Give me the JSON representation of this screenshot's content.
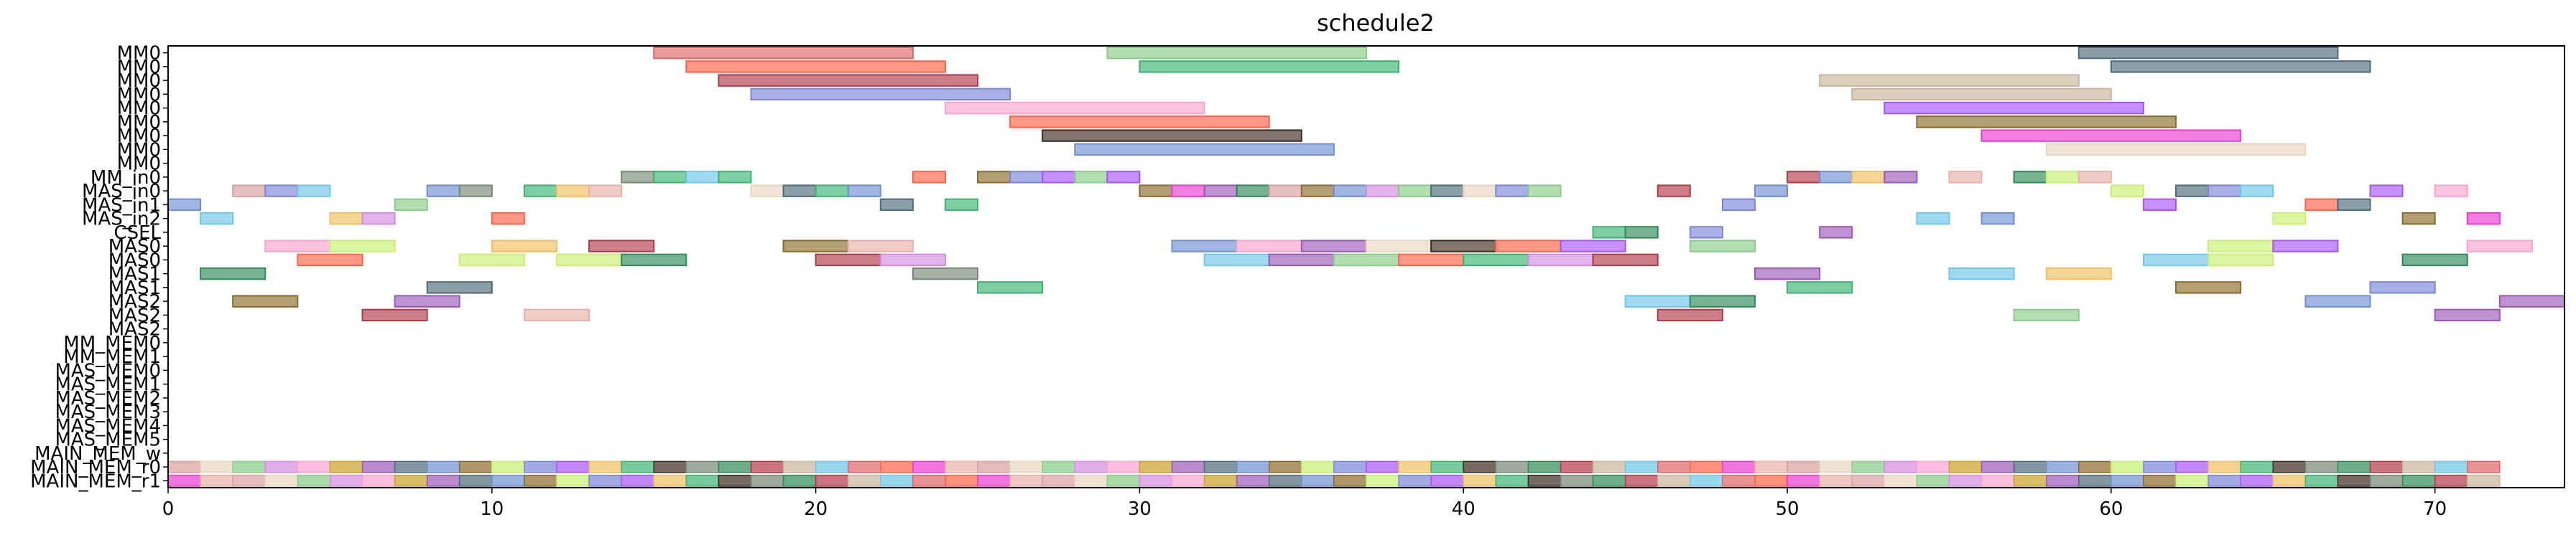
{
  "chart_data": {
    "type": "gantt",
    "title": "schedule2",
    "xlabel": "",
    "ylabel": "",
    "xlim": [
      0,
      74
    ],
    "xticks": [
      0,
      10,
      20,
      30,
      40,
      50,
      60,
      70
    ],
    "grid": false,
    "legend": "none",
    "rows": [
      "MM0",
      "MM0",
      "MM0",
      "MM0",
      "MM0",
      "MM0",
      "MM0",
      "MM0",
      "MM0",
      "MM_in0",
      "MAS_in0",
      "MAS_in1",
      "MAS_in2",
      "CSEL",
      "MAS0",
      "MAS0",
      "MAS1",
      "MAS1",
      "MAS2",
      "MAS2",
      "MAS2",
      "MM_MEM0",
      "MM_MEM1",
      "MAS_MEM0",
      "MAS_MEM1",
      "MAS_MEM2",
      "MAS_MEM3",
      "MAS_MEM4",
      "MAS_MEM5",
      "MAIN_MEM_w",
      "MAIN_MEM_r0",
      "MAIN_MEM_r1"
    ],
    "palette": [
      "#e06666",
      "#3cb371",
      "#4d6b7a",
      "#d9a0a0",
      "#b03a48",
      "#7b86d8",
      "#f9a3d0",
      "#ff6347",
      "#3d2b1f",
      "#6f8fd0",
      "#ead5c0",
      "#c8b59a",
      "#a855f7",
      "#c9a227",
      "#e93bd0",
      "#778877",
      "#8a6b2a",
      "#88cc88",
      "#6ec6e8",
      "#f0c060",
      "#9b59b6",
      "#e8b0a8",
      "#2e8b57",
      "#c8f070",
      "#d48ce0"
    ],
    "bars": [
      {
        "row": 0,
        "start": 15,
        "end": 23,
        "c": 0
      },
      {
        "row": 0,
        "start": 29,
        "end": 37,
        "c": 17
      },
      {
        "row": 0,
        "start": 59,
        "end": 67,
        "c": 2
      },
      {
        "row": 1,
        "start": 16,
        "end": 24,
        "c": 7
      },
      {
        "row": 1,
        "start": 30,
        "end": 38,
        "c": 1
      },
      {
        "row": 1,
        "start": 60,
        "end": 68,
        "c": 2
      },
      {
        "row": 2,
        "start": 17,
        "end": 25,
        "c": 4
      },
      {
        "row": 2,
        "start": 51,
        "end": 59,
        "c": 11
      },
      {
        "row": 3,
        "start": 18,
        "end": 26,
        "c": 5
      },
      {
        "row": 3,
        "start": 52,
        "end": 60,
        "c": 11
      },
      {
        "row": 4,
        "start": 24,
        "end": 32,
        "c": 6
      },
      {
        "row": 4,
        "start": 53,
        "end": 61,
        "c": 12
      },
      {
        "row": 5,
        "start": 26,
        "end": 34,
        "c": 7
      },
      {
        "row": 5,
        "start": 54,
        "end": 62,
        "c": 16
      },
      {
        "row": 6,
        "start": 27,
        "end": 35,
        "c": 8
      },
      {
        "row": 6,
        "start": 56,
        "end": 64,
        "c": 14
      },
      {
        "row": 7,
        "start": 28,
        "end": 36,
        "c": 9
      },
      {
        "row": 7,
        "start": 58,
        "end": 66,
        "c": 10
      },
      {
        "row": 9,
        "start": 14,
        "end": 15,
        "c": 15
      },
      {
        "row": 9,
        "start": 15,
        "end": 16,
        "c": 1
      },
      {
        "row": 9,
        "start": 16,
        "end": 17,
        "c": 18
      },
      {
        "row": 9,
        "start": 17,
        "end": 18,
        "c": 1
      },
      {
        "row": 9,
        "start": 23,
        "end": 24,
        "c": 7
      },
      {
        "row": 9,
        "start": 25,
        "end": 26,
        "c": 16
      },
      {
        "row": 9,
        "start": 26,
        "end": 27,
        "c": 5
      },
      {
        "row": 9,
        "start": 27,
        "end": 28,
        "c": 12
      },
      {
        "row": 9,
        "start": 28,
        "end": 29,
        "c": 17
      },
      {
        "row": 9,
        "start": 29,
        "end": 30,
        "c": 12
      },
      {
        "row": 9,
        "start": 50,
        "end": 51,
        "c": 4
      },
      {
        "row": 9,
        "start": 51,
        "end": 52,
        "c": 9
      },
      {
        "row": 9,
        "start": 52,
        "end": 53,
        "c": 19
      },
      {
        "row": 9,
        "start": 53,
        "end": 54,
        "c": 20
      },
      {
        "row": 9,
        "start": 55,
        "end": 56,
        "c": 21
      },
      {
        "row": 9,
        "start": 57,
        "end": 58,
        "c": 22
      },
      {
        "row": 9,
        "start": 58,
        "end": 59,
        "c": 23
      },
      {
        "row": 9,
        "start": 59,
        "end": 60,
        "c": 21
      },
      {
        "row": 10,
        "start": 2,
        "end": 3,
        "c": 3
      },
      {
        "row": 10,
        "start": 3,
        "end": 4,
        "c": 5
      },
      {
        "row": 10,
        "start": 4,
        "end": 5,
        "c": 18
      },
      {
        "row": 10,
        "start": 8,
        "end": 9,
        "c": 9
      },
      {
        "row": 10,
        "start": 9,
        "end": 10,
        "c": 15
      },
      {
        "row": 10,
        "start": 11,
        "end": 12,
        "c": 1
      },
      {
        "row": 10,
        "start": 12,
        "end": 13,
        "c": 19
      },
      {
        "row": 10,
        "start": 13,
        "end": 14,
        "c": 21
      },
      {
        "row": 10,
        "start": 18,
        "end": 19,
        "c": 10
      },
      {
        "row": 10,
        "start": 19,
        "end": 20,
        "c": 2
      },
      {
        "row": 10,
        "start": 20,
        "end": 21,
        "c": 1
      },
      {
        "row": 10,
        "start": 21,
        "end": 22,
        "c": 9
      },
      {
        "row": 10,
        "start": 30,
        "end": 31,
        "c": 16
      },
      {
        "row": 10,
        "start": 31,
        "end": 32,
        "c": 14
      },
      {
        "row": 10,
        "start": 32,
        "end": 33,
        "c": 20
      },
      {
        "row": 10,
        "start": 33,
        "end": 34,
        "c": 22
      },
      {
        "row": 10,
        "start": 34,
        "end": 35,
        "c": 3
      },
      {
        "row": 10,
        "start": 35,
        "end": 36,
        "c": 16
      },
      {
        "row": 10,
        "start": 36,
        "end": 37,
        "c": 9
      },
      {
        "row": 10,
        "start": 37,
        "end": 38,
        "c": 24
      },
      {
        "row": 10,
        "start": 38,
        "end": 39,
        "c": 17
      },
      {
        "row": 10,
        "start": 39,
        "end": 40,
        "c": 2
      },
      {
        "row": 10,
        "start": 40,
        "end": 41,
        "c": 10
      },
      {
        "row": 10,
        "start": 41,
        "end": 42,
        "c": 5
      },
      {
        "row": 10,
        "start": 42,
        "end": 43,
        "c": 17
      },
      {
        "row": 10,
        "start": 46,
        "end": 47,
        "c": 4
      },
      {
        "row": 10,
        "start": 49,
        "end": 50,
        "c": 9
      },
      {
        "row": 10,
        "start": 60,
        "end": 61,
        "c": 23
      },
      {
        "row": 10,
        "start": 62,
        "end": 63,
        "c": 2
      },
      {
        "row": 10,
        "start": 63,
        "end": 64,
        "c": 5
      },
      {
        "row": 10,
        "start": 64,
        "end": 65,
        "c": 18
      },
      {
        "row": 10,
        "start": 68,
        "end": 69,
        "c": 12
      },
      {
        "row": 10,
        "start": 70,
        "end": 71,
        "c": 6
      },
      {
        "row": 11,
        "start": 0,
        "end": 1,
        "c": 9
      },
      {
        "row": 11,
        "start": 7,
        "end": 8,
        "c": 17
      },
      {
        "row": 11,
        "start": 22,
        "end": 23,
        "c": 2
      },
      {
        "row": 11,
        "start": 24,
        "end": 25,
        "c": 1
      },
      {
        "row": 11,
        "start": 48,
        "end": 49,
        "c": 5
      },
      {
        "row": 11,
        "start": 61,
        "end": 62,
        "c": 12
      },
      {
        "row": 11,
        "start": 66,
        "end": 67,
        "c": 7
      },
      {
        "row": 11,
        "start": 67,
        "end": 68,
        "c": 2
      },
      {
        "row": 12,
        "start": 1,
        "end": 2,
        "c": 18
      },
      {
        "row": 12,
        "start": 5,
        "end": 6,
        "c": 19
      },
      {
        "row": 12,
        "start": 6,
        "end": 7,
        "c": 24
      },
      {
        "row": 12,
        "start": 10,
        "end": 11,
        "c": 7
      },
      {
        "row": 12,
        "start": 54,
        "end": 55,
        "c": 18
      },
      {
        "row": 12,
        "start": 56,
        "end": 57,
        "c": 9
      },
      {
        "row": 12,
        "start": 65,
        "end": 66,
        "c": 23
      },
      {
        "row": 12,
        "start": 69,
        "end": 70,
        "c": 16
      },
      {
        "row": 12,
        "start": 71,
        "end": 72,
        "c": 14
      },
      {
        "row": 13,
        "start": 44,
        "end": 45,
        "c": 1
      },
      {
        "row": 13,
        "start": 45,
        "end": 46,
        "c": 22
      },
      {
        "row": 13,
        "start": 47,
        "end": 48,
        "c": 5
      },
      {
        "row": 13,
        "start": 51,
        "end": 52,
        "c": 20
      },
      {
        "row": 14,
        "start": 3,
        "end": 5,
        "c": 6
      },
      {
        "row": 14,
        "start": 5,
        "end": 7,
        "c": 23
      },
      {
        "row": 14,
        "start": 10,
        "end": 12,
        "c": 19
      },
      {
        "row": 14,
        "start": 13,
        "end": 15,
        "c": 4
      },
      {
        "row": 14,
        "start": 19,
        "end": 21,
        "c": 16
      },
      {
        "row": 14,
        "start": 21,
        "end": 23,
        "c": 21
      },
      {
        "row": 14,
        "start": 31,
        "end": 33,
        "c": 9
      },
      {
        "row": 14,
        "start": 33,
        "end": 35,
        "c": 6
      },
      {
        "row": 14,
        "start": 35,
        "end": 37,
        "c": 20
      },
      {
        "row": 14,
        "start": 37,
        "end": 39,
        "c": 10
      },
      {
        "row": 14,
        "start": 39,
        "end": 41,
        "c": 8
      },
      {
        "row": 14,
        "start": 41,
        "end": 43,
        "c": 7
      },
      {
        "row": 14,
        "start": 43,
        "end": 45,
        "c": 12
      },
      {
        "row": 14,
        "start": 47,
        "end": 49,
        "c": 17
      },
      {
        "row": 14,
        "start": 63,
        "end": 65,
        "c": 23
      },
      {
        "row": 14,
        "start": 65,
        "end": 67,
        "c": 12
      },
      {
        "row": 14,
        "start": 71,
        "end": 73,
        "c": 6
      },
      {
        "row": 15,
        "start": 4,
        "end": 6,
        "c": 7
      },
      {
        "row": 15,
        "start": 9,
        "end": 11,
        "c": 23
      },
      {
        "row": 15,
        "start": 12,
        "end": 14,
        "c": 23
      },
      {
        "row": 15,
        "start": 14,
        "end": 16,
        "c": 22
      },
      {
        "row": 15,
        "start": 20,
        "end": 22,
        "c": 4
      },
      {
        "row": 15,
        "start": 22,
        "end": 24,
        "c": 24
      },
      {
        "row": 15,
        "start": 32,
        "end": 34,
        "c": 18
      },
      {
        "row": 15,
        "start": 34,
        "end": 36,
        "c": 20
      },
      {
        "row": 15,
        "start": 36,
        "end": 38,
        "c": 17
      },
      {
        "row": 15,
        "start": 38,
        "end": 40,
        "c": 7
      },
      {
        "row": 15,
        "start": 40,
        "end": 42,
        "c": 1
      },
      {
        "row": 15,
        "start": 42,
        "end": 44,
        "c": 24
      },
      {
        "row": 15,
        "start": 44,
        "end": 46,
        "c": 4
      },
      {
        "row": 15,
        "start": 61,
        "end": 63,
        "c": 18
      },
      {
        "row": 15,
        "start": 63,
        "end": 65,
        "c": 23
      },
      {
        "row": 15,
        "start": 69,
        "end": 71,
        "c": 22
      },
      {
        "row": 16,
        "start": 1,
        "end": 3,
        "c": 22
      },
      {
        "row": 16,
        "start": 23,
        "end": 25,
        "c": 15
      },
      {
        "row": 16,
        "start": 49,
        "end": 51,
        "c": 20
      },
      {
        "row": 16,
        "start": 55,
        "end": 57,
        "c": 18
      },
      {
        "row": 16,
        "start": 58,
        "end": 60,
        "c": 19
      },
      {
        "row": 17,
        "start": 8,
        "end": 10,
        "c": 2
      },
      {
        "row": 17,
        "start": 25,
        "end": 27,
        "c": 1
      },
      {
        "row": 17,
        "start": 50,
        "end": 52,
        "c": 1
      },
      {
        "row": 17,
        "start": 62,
        "end": 64,
        "c": 16
      },
      {
        "row": 17,
        "start": 68,
        "end": 70,
        "c": 5
      },
      {
        "row": 18,
        "start": 2,
        "end": 4,
        "c": 16
      },
      {
        "row": 18,
        "start": 7,
        "end": 9,
        "c": 20
      },
      {
        "row": 18,
        "start": 45,
        "end": 47,
        "c": 18
      },
      {
        "row": 18,
        "start": 47,
        "end": 49,
        "c": 22
      },
      {
        "row": 18,
        "start": 66,
        "end": 68,
        "c": 9
      },
      {
        "row": 18,
        "start": 72,
        "end": 74,
        "c": 20
      },
      {
        "row": 19,
        "start": 6,
        "end": 8,
        "c": 4
      },
      {
        "row": 19,
        "start": 11,
        "end": 13,
        "c": 21
      },
      {
        "row": 19,
        "start": 46,
        "end": 48,
        "c": 4
      },
      {
        "row": 19,
        "start": 57,
        "end": 59,
        "c": 17
      },
      {
        "row": 19,
        "start": 70,
        "end": 72,
        "c": 20
      }
    ]
  }
}
